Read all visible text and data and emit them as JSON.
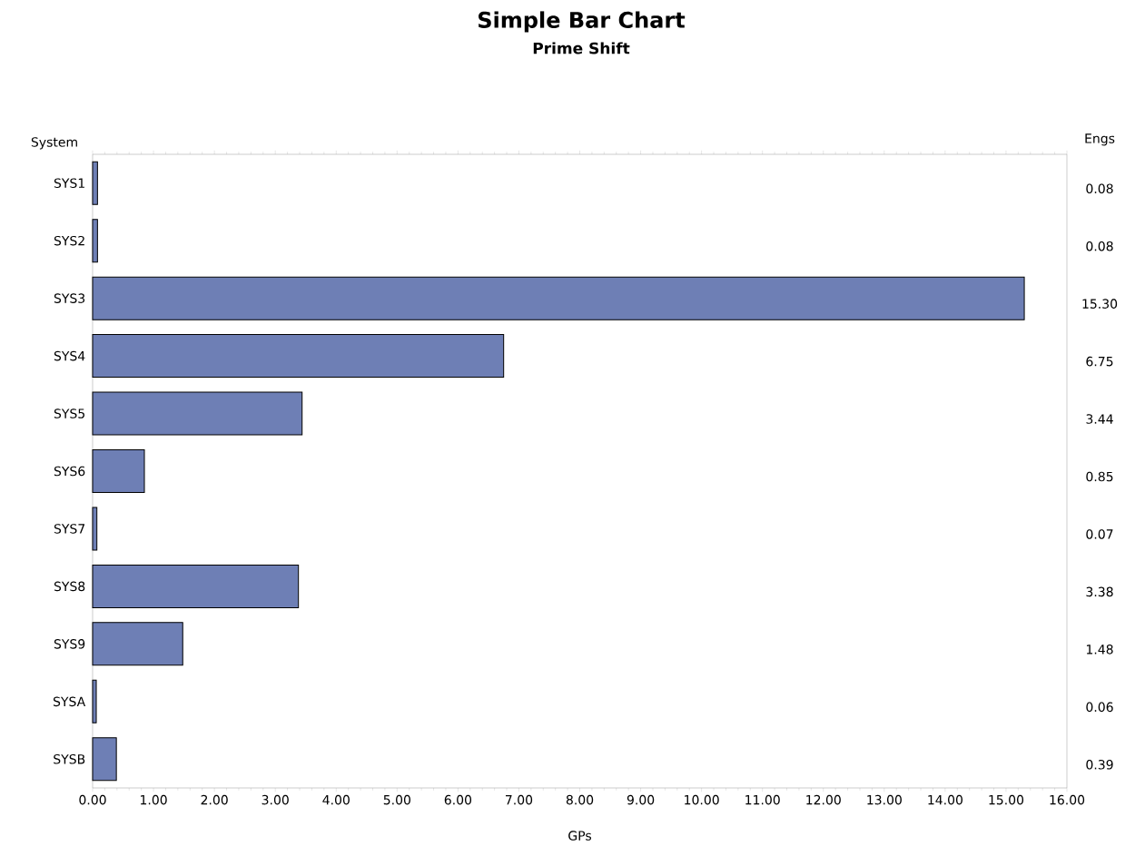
{
  "chart_data": {
    "type": "bar",
    "orientation": "horizontal",
    "title": "Simple Bar Chart",
    "subtitle": "Prime Shift",
    "xlabel": "GPs",
    "ylabel": "System",
    "y2label": "Engs",
    "categories": [
      "SYS1",
      "SYS2",
      "SYS3",
      "SYS4",
      "SYS5",
      "SYS6",
      "SYS7",
      "SYS8",
      "SYS9",
      "SYSA",
      "SYSB"
    ],
    "values": [
      0.08,
      0.08,
      15.3,
      6.75,
      3.44,
      0.85,
      0.07,
      3.38,
      1.48,
      0.06,
      0.39
    ],
    "value_labels": [
      "0.08",
      "0.08",
      "15.30",
      "6.75",
      "3.44",
      "0.85",
      "0.07",
      "3.38",
      "1.48",
      "0.06",
      "0.39"
    ],
    "color": "#6e7fb5",
    "xlim": [
      0,
      16
    ],
    "xticks": [
      {
        "value": 0,
        "label": "0.00"
      },
      {
        "value": 1,
        "label": "1.00"
      },
      {
        "value": 2,
        "label": "2.00"
      },
      {
        "value": 3,
        "label": "3.00"
      },
      {
        "value": 4,
        "label": "4.00"
      },
      {
        "value": 5,
        "label": "5.00"
      },
      {
        "value": 6,
        "label": "6.00"
      },
      {
        "value": 7,
        "label": "7.00"
      },
      {
        "value": 8,
        "label": "8.00"
      },
      {
        "value": 9,
        "label": "9.00"
      },
      {
        "value": 10,
        "label": "10.00"
      },
      {
        "value": 11,
        "label": "11.00"
      },
      {
        "value": 12,
        "label": "12.00"
      },
      {
        "value": 13,
        "label": "13.00"
      },
      {
        "value": 14,
        "label": "14.00"
      },
      {
        "value": 15,
        "label": "15.00"
      },
      {
        "value": 16,
        "label": "16.00"
      }
    ],
    "grid": false
  }
}
